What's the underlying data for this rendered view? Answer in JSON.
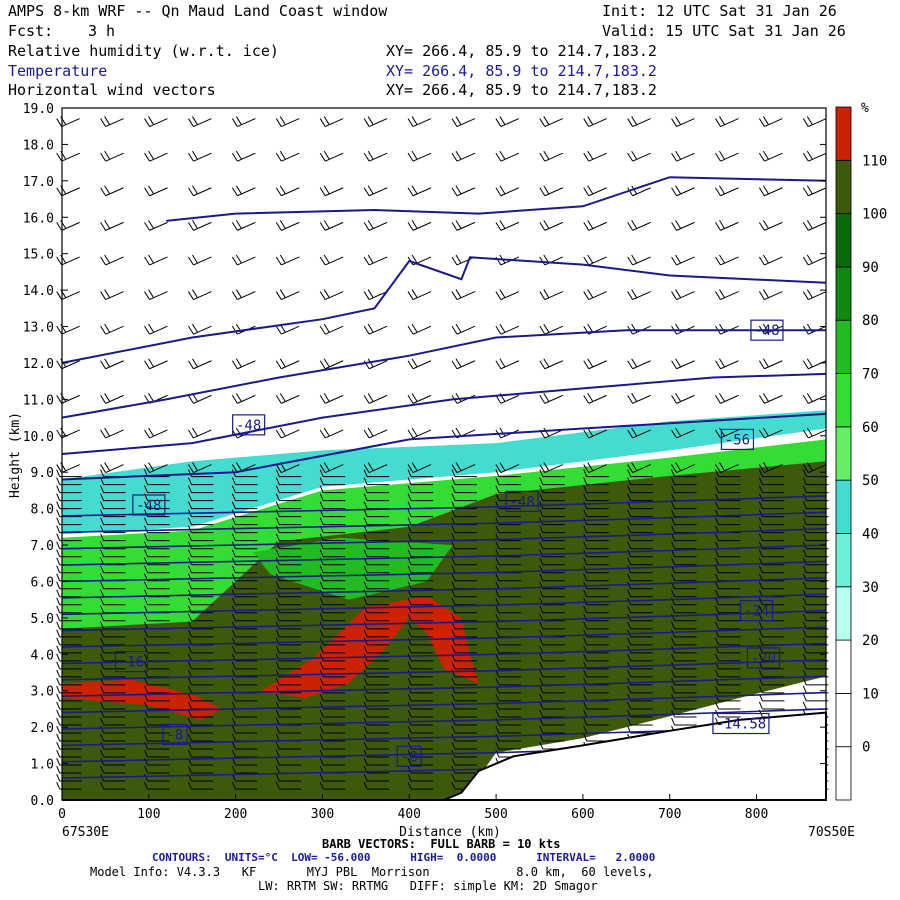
{
  "header": {
    "title": "AMPS 8-km WRF -- Qn Maud Land Coast window",
    "init": "Init: 12 UTC Sat 31 Jan 26",
    "fcst_label": "Fcst:",
    "fcst_value": "3 h",
    "valid": "Valid: 15 UTC Sat 31 Jan 26",
    "fields": [
      {
        "name": "Relative humidity (w.r.t. ice)",
        "xy": "XY= 266.4, 85.9 to 214.7,183.2",
        "color": "#000000"
      },
      {
        "name": "Temperature",
        "xy": "XY= 266.4, 85.9 to 214.7,183.2",
        "color": "#1a1a9a"
      },
      {
        "name": "Horizontal wind vectors",
        "xy": "XY= 266.4, 85.9 to 214.7,183.2",
        "color": "#000000"
      }
    ]
  },
  "footer": {
    "left_coord": "67S30E",
    "right_coord": "70S50E",
    "barb": "BARB VECTORS:  FULL BARB = 10 kts",
    "contours": "CONTOURS:  UNITS=°C  LOW= -56.000      HIGH=  0.0000      INTERVAL=   2.0000",
    "model1": "Model Info: V4.3.3   KF       MYJ PBL  Morrison            8.0 km,  60 levels,",
    "model2": "LW: RRTM SW: RRTMG   DIFF: simple KM: 2D Smagor"
  },
  "chart_data": {
    "type": "cross-section",
    "title": "Relative humidity (w.r.t. ice), Temperature, Horizontal wind vectors",
    "xlabel": "Distance (km)",
    "ylabel": "Height (km)",
    "xlim": [
      0,
      880
    ],
    "ylim": [
      0,
      19
    ],
    "x_ticks": [
      0,
      100,
      200,
      300,
      400,
      500,
      600,
      700,
      800
    ],
    "y_ticks": [
      "0.0",
      "1.0",
      "2.0",
      "3.0",
      "4.0",
      "5.0",
      "6.0",
      "7.0",
      "8.0",
      "9.0",
      "10.0",
      "11.0",
      "12.0",
      "13.0",
      "14.0",
      "15.0",
      "16.0",
      "17.0",
      "18.0",
      "19.0"
    ],
    "colorbar": {
      "unit": "%",
      "labels": [
        "0",
        "10",
        "20",
        "30",
        "40",
        "50",
        "60",
        "70",
        "80",
        "90",
        "100",
        "110"
      ],
      "levels": [
        -10,
        0,
        10,
        20,
        30,
        40,
        50,
        60,
        70,
        80,
        90,
        100,
        110,
        120
      ],
      "colors": [
        "#ffffff",
        "#ffffff",
        "#ffffff",
        "#b6fff0",
        "#6ef0d8",
        "#44dcd0",
        "#66ee66",
        "#33dd33",
        "#22bb22",
        "#118811",
        "#0a6a0a",
        "#3d5a0a",
        "#cc2200"
      ]
    },
    "terrain_km": [
      [
        0,
        0
      ],
      [
        440,
        0
      ],
      [
        460,
        0.2
      ],
      [
        480,
        0.8
      ],
      [
        520,
        1.2
      ],
      [
        600,
        1.5
      ],
      [
        700,
        1.9
      ],
      [
        780,
        2.2
      ],
      [
        880,
        2.4
      ]
    ],
    "contour_labels": [
      "-48",
      "-48",
      "-48",
      "-48",
      "-56",
      "-24",
      "-20",
      "-14.58",
      "-16",
      "-8",
      "-8"
    ],
    "humidity_regions": [
      {
        "level": 40,
        "poly": [
          [
            0,
            7.3
          ],
          [
            150,
            7.5
          ],
          [
            300,
            8.6
          ],
          [
            500,
            9.0
          ],
          [
            700,
            9.6
          ],
          [
            880,
            10.2
          ],
          [
            880,
            10.7
          ],
          [
            700,
            10.4
          ],
          [
            500,
            9.8
          ],
          [
            300,
            9.6
          ],
          [
            150,
            9.3
          ],
          [
            0,
            8.8
          ]
        ]
      },
      {
        "level": 60,
        "poly": [
          [
            0,
            3.5
          ],
          [
            0,
            7.2
          ],
          [
            150,
            7.4
          ],
          [
            300,
            8.5
          ],
          [
            500,
            8.9
          ],
          [
            700,
            9.4
          ],
          [
            880,
            9.9
          ],
          [
            880,
            3.8
          ],
          [
            700,
            3.2
          ],
          [
            600,
            2.4
          ],
          [
            500,
            1.4
          ],
          [
            460,
            0
          ]
        ]
      },
      {
        "level": 100,
        "poly": [
          [
            0,
            0
          ],
          [
            0,
            4.7
          ],
          [
            150,
            4.9
          ],
          [
            250,
            7.1
          ],
          [
            400,
            7.5
          ],
          [
            500,
            8.4
          ],
          [
            700,
            8.9
          ],
          [
            880,
            9.3
          ],
          [
            880,
            3.4
          ],
          [
            780,
            2.8
          ],
          [
            700,
            2.3
          ],
          [
            600,
            1.7
          ],
          [
            500,
            1.3
          ],
          [
            470,
            0.3
          ],
          [
            460,
            0
          ]
        ]
      },
      {
        "level": 70,
        "poly": [
          [
            220,
            6.8
          ],
          [
            320,
            7.2
          ],
          [
            450,
            7.0
          ],
          [
            420,
            6.0
          ],
          [
            330,
            5.5
          ],
          [
            240,
            6.2
          ]
        ]
      },
      {
        "level": 110,
        "poly": [
          [
            0,
            3.2
          ],
          [
            80,
            3.3
          ],
          [
            150,
            2.9
          ],
          [
            185,
            2.5
          ],
          [
            160,
            2.2
          ],
          [
            100,
            2.6
          ],
          [
            0,
            2.8
          ]
        ]
      },
      {
        "level": 110,
        "poly": [
          [
            230,
            3.0
          ],
          [
            290,
            3.9
          ],
          [
            350,
            5.3
          ],
          [
            420,
            5.6
          ],
          [
            460,
            5.0
          ],
          [
            470,
            4.0
          ],
          [
            480,
            3.2
          ],
          [
            440,
            3.6
          ],
          [
            420,
            4.6
          ],
          [
            400,
            5.0
          ],
          [
            370,
            4.1
          ],
          [
            330,
            3.2
          ],
          [
            280,
            2.8
          ]
        ]
      }
    ],
    "temperature_contours": [
      [
        [
          0,
          12.0
        ],
        [
          150,
          12.7
        ],
        [
          300,
          13.2
        ],
        [
          360,
          13.5
        ],
        [
          400,
          14.8
        ],
        [
          460,
          14.3
        ],
        [
          470,
          14.9
        ],
        [
          600,
          14.7
        ],
        [
          700,
          14.4
        ],
        [
          880,
          14.2
        ]
      ],
      [
        [
          0,
          10.5
        ],
        [
          120,
          11.0
        ],
        [
          250,
          11.6
        ],
        [
          400,
          12.2
        ],
        [
          500,
          12.7
        ],
        [
          650,
          12.9
        ],
        [
          880,
          12.9
        ]
      ],
      [
        [
          0,
          9.5
        ],
        [
          150,
          9.8
        ],
        [
          300,
          10.5
        ],
        [
          450,
          11.0
        ],
        [
          600,
          11.3
        ],
        [
          750,
          11.6
        ],
        [
          880,
          11.7
        ]
      ],
      [
        [
          0,
          8.8
        ],
        [
          200,
          9.0
        ],
        [
          400,
          9.9
        ],
        [
          600,
          10.2
        ],
        [
          880,
          10.6
        ]
      ],
      [
        [
          120,
          15.9
        ],
        [
          200,
          16.1
        ],
        [
          360,
          16.2
        ],
        [
          480,
          16.1
        ],
        [
          600,
          16.3
        ],
        [
          700,
          17.1
        ],
        [
          880,
          17.0
        ]
      ]
    ]
  }
}
